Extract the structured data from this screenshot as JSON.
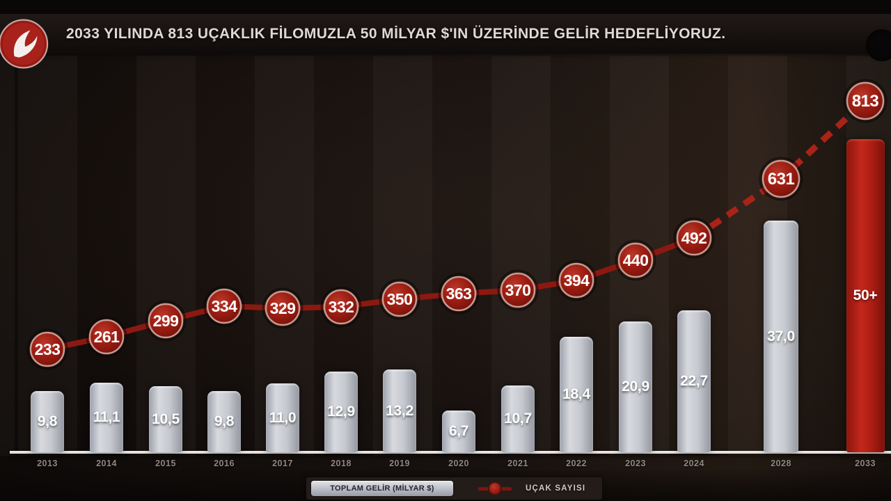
{
  "header": {
    "title": "2033 YILINDA 813 UÇAKLIK FİLOMUZLA 50 MİLYAR $'IN ÜZERİNDE GELİR HEDEFLİYORUZ.",
    "logo": "turkish-airlines-logo"
  },
  "chart_data": {
    "type": "bar",
    "subtype": "bar-line-combo",
    "categories": [
      "2013",
      "2014",
      "2015",
      "2016",
      "2017",
      "2018",
      "2019",
      "2020",
      "2021",
      "2022",
      "2023",
      "2024",
      "2028",
      "2033"
    ],
    "series": [
      {
        "name": "TOPLAM GELİR (MİLYAR $)",
        "type": "bar",
        "values": [
          9.8,
          11.1,
          10.5,
          9.8,
          11.0,
          12.9,
          13.2,
          6.7,
          10.7,
          18.4,
          20.9,
          22.7,
          37.0,
          50
        ],
        "labels": [
          "9,8",
          "11,1",
          "10,5",
          "9,8",
          "11,0",
          "12,9",
          "13,2",
          "6,7",
          "10,7",
          "18,4",
          "20,9",
          "22,7",
          "37,0",
          "50+"
        ],
        "highlight_index": 13
      },
      {
        "name": "UÇAK SAYISI",
        "type": "line",
        "values": [
          233,
          261,
          299,
          334,
          329,
          332,
          350,
          363,
          370,
          394,
          440,
          492,
          631,
          813
        ],
        "dashed_from_index": 11
      }
    ],
    "xlabel": "",
    "ylabel": "",
    "grid": false,
    "legend_position": "bottom-center"
  },
  "legend": {
    "revenue_label": "TOPLAM GELİR (MİLYAR $)",
    "aircraft_label": "UÇAK SAYISI"
  },
  "colors": {
    "accent_red": "#a01d12",
    "line_red": "#8c1911",
    "dashed_red": "#aa2317",
    "bar_silver": "#c6c9d0",
    "highlight_bar_red": "#b01f14",
    "background": "#17110f",
    "title_text": "#ded9d4",
    "axis_line": "#f4f2ee",
    "year_label": "#8f8680"
  }
}
